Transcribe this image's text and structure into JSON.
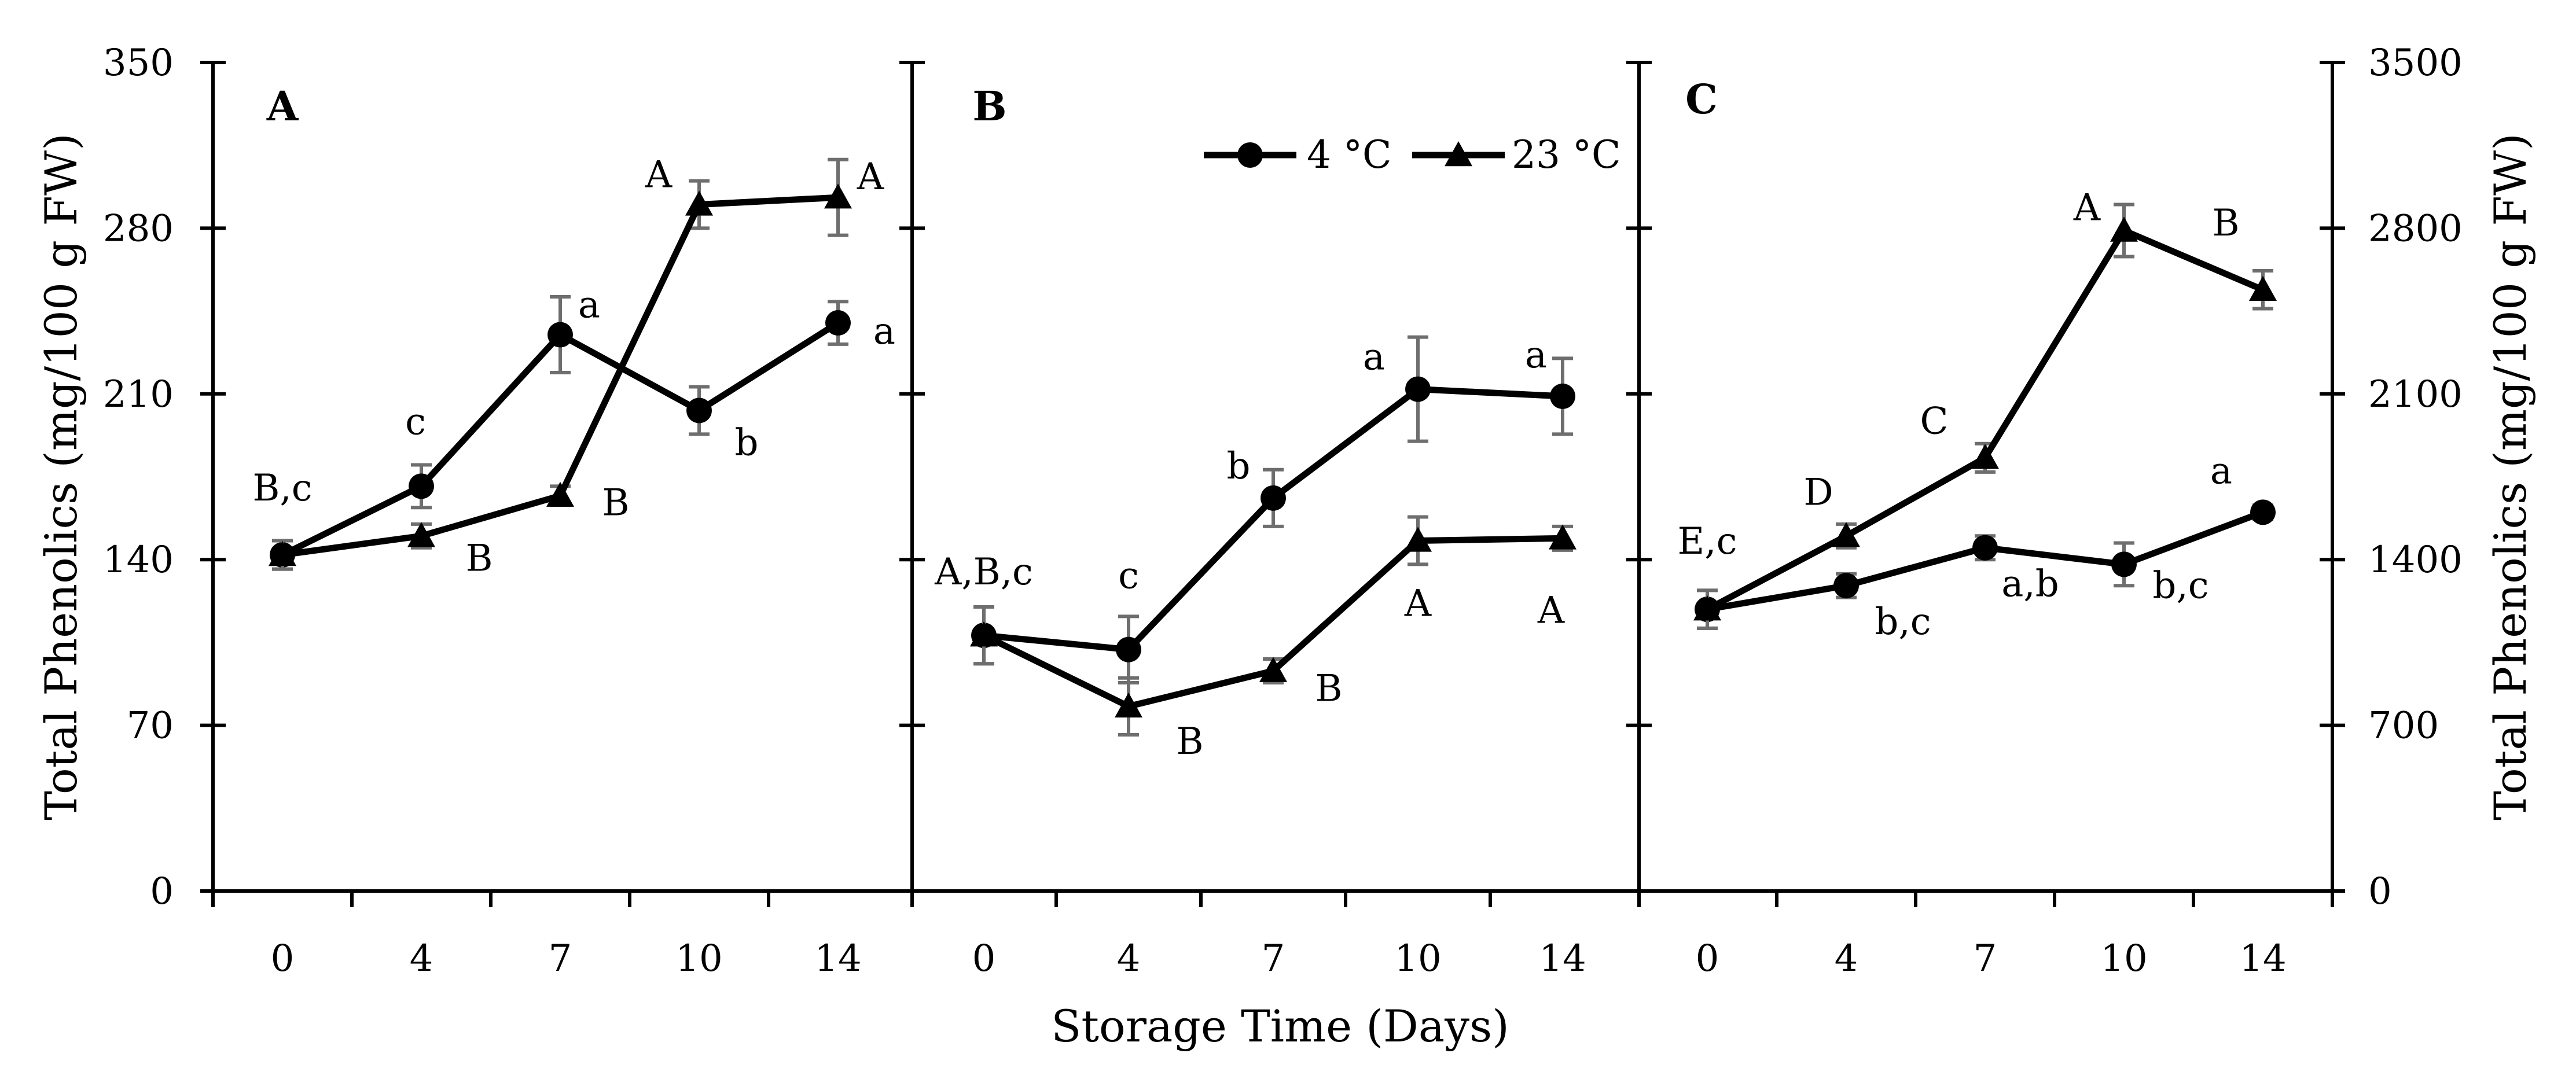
{
  "chart_data": {
    "type": "line",
    "xlabel": "Storage Time (Days)",
    "ylabel_left": "Total Phenolics (mg/100 g FW)",
    "ylabel_right": "Total Phenolics (mg/100 g FW)",
    "categories": [
      "0",
      "4",
      "7",
      "10",
      "14"
    ],
    "legend": [
      "4 °C",
      "23 °C"
    ],
    "legend_position": "top-center of panel B",
    "panels": [
      {
        "letter": "A",
        "ylim": [
          0,
          350
        ],
        "yticks": [
          0,
          70,
          140,
          210,
          280,
          350
        ],
        "ytick_labels": [
          "0",
          "70",
          "140",
          "210",
          "280",
          "350"
        ],
        "series": [
          {
            "name": "4 °C",
            "marker": "circle",
            "values": [
              142,
              171,
              235,
              203,
              240
            ],
            "errors": [
              6,
              9,
              16,
              10,
              9
            ],
            "labels": [
              "",
              "c",
              "a",
              "b",
              "a"
            ]
          },
          {
            "name": "23 °C",
            "marker": "triangle",
            "values": [
              142,
              150,
              167,
              290,
              293
            ],
            "errors": [
              6,
              5,
              4,
              10,
              16
            ],
            "labels": [
              "B,c",
              "B",
              "B",
              "A",
              "A"
            ]
          }
        ]
      },
      {
        "letter": "B",
        "ylim": [
          0,
          350
        ],
        "yticks": [
          0,
          70,
          140,
          210,
          280,
          350
        ],
        "series": [
          {
            "name": "4 °C",
            "marker": "circle",
            "values": [
              108,
              102,
              166,
              212,
              209
            ],
            "errors": [
              12,
              14,
              12,
              22,
              16
            ],
            "labels": [
              "A,B,c",
              "c",
              "b",
              "a",
              "a"
            ]
          },
          {
            "name": "23 °C",
            "marker": "triangle",
            "values": [
              108,
              78,
              93,
              148,
              149
            ],
            "errors": [
              12,
              12,
              5,
              10,
              5
            ],
            "labels": [
              "",
              "B",
              "B",
              "A",
              "A"
            ]
          }
        ]
      },
      {
        "letter": "C",
        "ylim": [
          0,
          3500
        ],
        "yticks": [
          0,
          700,
          1400,
          2100,
          2800,
          3500
        ],
        "ytick_labels": [
          "0",
          "700",
          "1400",
          "2100",
          "2800",
          "3500"
        ],
        "series": [
          {
            "name": "4 °C",
            "marker": "circle",
            "values": [
              1190,
              1290,
              1450,
              1380,
              1600
            ],
            "errors": [
              80,
              50,
              50,
              90,
              30
            ],
            "labels": [
              "",
              "b,c",
              "a,b",
              "b,c",
              "a"
            ]
          },
          {
            "name": "23 °C",
            "marker": "triangle",
            "values": [
              1190,
              1500,
              1830,
              2790,
              2540
            ],
            "errors": [
              80,
              50,
              60,
              110,
              80
            ],
            "labels": [
              "E,c",
              "D",
              "C",
              "A",
              "B"
            ]
          }
        ]
      }
    ]
  }
}
